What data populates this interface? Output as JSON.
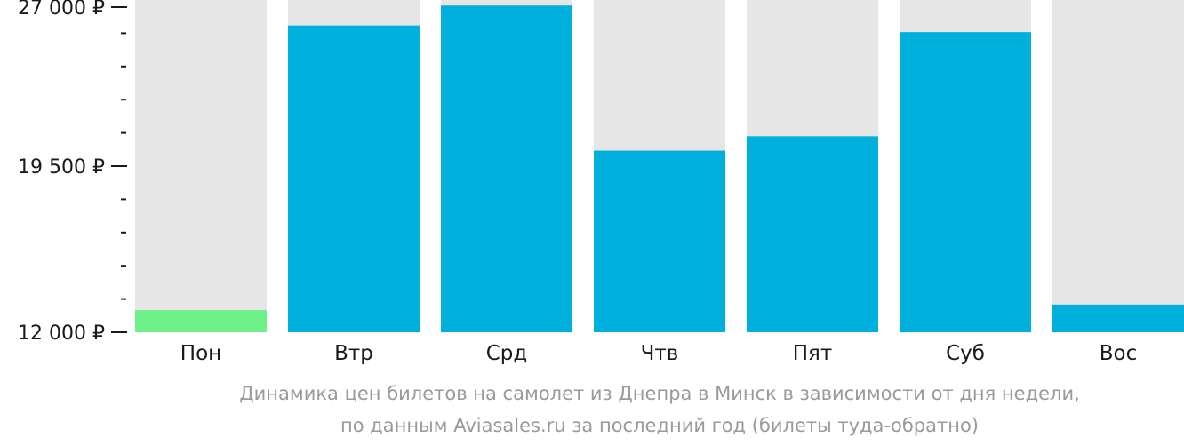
{
  "chart_data": {
    "type": "bar",
    "categories": [
      "Пон",
      "Втр",
      "Срд",
      "Чтв",
      "Пят",
      "Суб",
      "Вос"
    ],
    "values": [
      13000,
      25850,
      26750,
      20200,
      20850,
      25550,
      13250
    ],
    "highlight_index": 0,
    "ylim": [
      12000,
      27000
    ],
    "yticks": [
      {
        "value": 27000,
        "label": "27 000 ₽"
      },
      {
        "value": 19500,
        "label": "19 500 ₽"
      },
      {
        "value": 12000,
        "label": "12 000 ₽"
      }
    ],
    "minor_tick_step": 1500,
    "colors": {
      "bar": "#00b0dc",
      "highlight": "#6df087",
      "track": "#e6e6e6",
      "axis_text": "#1a1a1a",
      "caption": "#9a9a9a"
    }
  },
  "caption": {
    "line1": "Динамика цен билетов на самолет из Днепра в Минск в зависимости от дня недели,",
    "line2": "по данным Aviasales.ru за последний год (билеты туда-обратно)"
  }
}
